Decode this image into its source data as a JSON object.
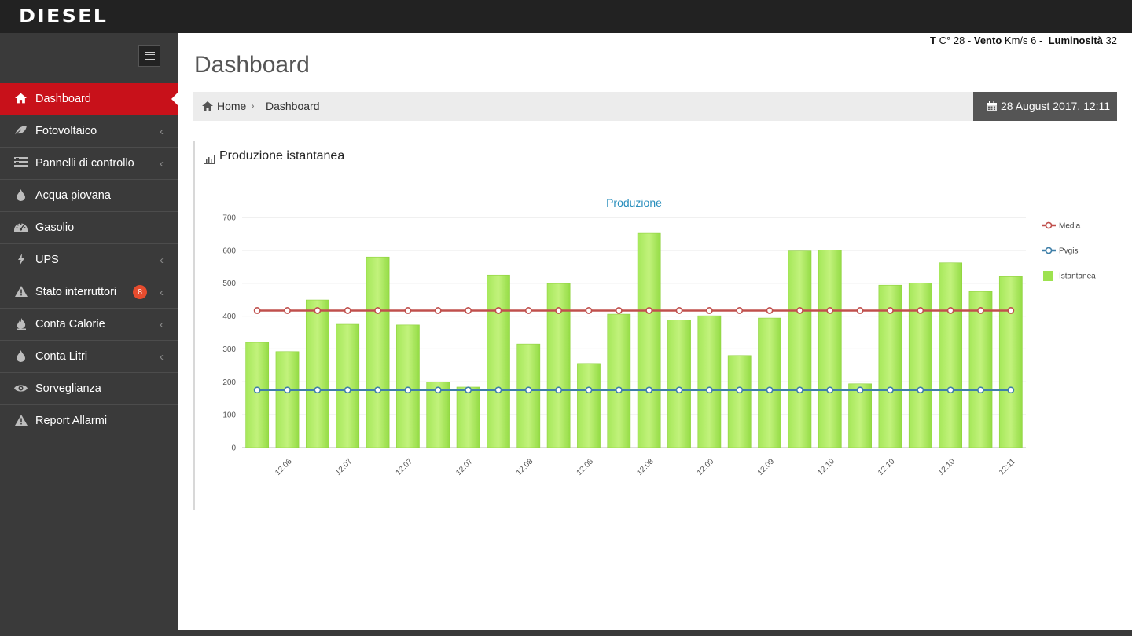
{
  "app": {
    "logo": "DIESEL"
  },
  "header": {
    "weather": {
      "temp_label": "T",
      "temp_unit": "C°",
      "temp_value": "28",
      "wind_label": "Vento",
      "wind_unit": "Km/s",
      "wind_value": "6",
      "lum_label": "Luminosità",
      "lum_value": "32"
    },
    "date": "28 August 2017, 12:11"
  },
  "sidebar": {
    "items": [
      {
        "label": "Dashboard",
        "icon": "home-icon",
        "active": true,
        "chevron": false
      },
      {
        "label": "Fotovoltaico",
        "icon": "leaf-icon",
        "chevron": true
      },
      {
        "label": "Pannelli di controllo",
        "icon": "panels-icon",
        "chevron": true
      },
      {
        "label": "Acqua piovana",
        "icon": "water-drop-icon",
        "chevron": false
      },
      {
        "label": "Gasolio",
        "icon": "gauge-icon",
        "chevron": false
      },
      {
        "label": "UPS",
        "icon": "bolt-icon",
        "chevron": true
      },
      {
        "label": "Stato interruttori",
        "icon": "warning-icon",
        "chevron": true,
        "badge": "8"
      },
      {
        "label": "Conta Calorie",
        "icon": "flame-icon",
        "chevron": true
      },
      {
        "label": "Conta Litri",
        "icon": "water-drop-icon",
        "chevron": true
      },
      {
        "label": "Sorveglianza",
        "icon": "eye-icon",
        "chevron": false
      },
      {
        "label": "Report Allarmi",
        "icon": "warning-icon",
        "chevron": false
      }
    ]
  },
  "page": {
    "title": "Dashboard"
  },
  "breadcrumb": {
    "home": "Home",
    "current": "Dashboard"
  },
  "panel": {
    "title": "Produzione istantanea"
  },
  "colors": {
    "accent": "#c8111a",
    "bar": "#9de24f",
    "media": "#c0504d",
    "pvgis": "#3f7fa8",
    "title": "#2a8fbd",
    "badge": "#e64c2e"
  },
  "chart_data": {
    "type": "bar",
    "title": "Produzione",
    "ylim": [
      0,
      700
    ],
    "yticks": [
      0,
      100,
      200,
      300,
      400,
      500,
      600,
      700
    ],
    "categories": [
      "",
      "12:06",
      "",
      "12:07",
      "",
      "12:07",
      "",
      "12:07",
      "",
      "12:08",
      "",
      "12:08",
      "",
      "12:08",
      "",
      "12:09",
      "",
      "12:09",
      "",
      "12:10",
      "",
      "12:10",
      "",
      "12:10",
      "",
      "12:11"
    ],
    "series": [
      {
        "name": "Istantanea",
        "type": "bar",
        "color": "#9de24f",
        "values": [
          320,
          292,
          449,
          375,
          580,
          373,
          199,
          184,
          525,
          315,
          499,
          256,
          406,
          652,
          388,
          401,
          280,
          394,
          598,
          601,
          194,
          494,
          501,
          562,
          475,
          520
        ]
      },
      {
        "name": "Media",
        "type": "line",
        "color": "#c0504d",
        "values": [
          417,
          417,
          417,
          417,
          417,
          417,
          417,
          417,
          417,
          417,
          417,
          417,
          417,
          417,
          417,
          417,
          417,
          417,
          417,
          417,
          417,
          417,
          417,
          417,
          417,
          417
        ]
      },
      {
        "name": "Pvgis",
        "type": "line",
        "color": "#3f7fa8",
        "values": [
          175,
          175,
          175,
          175,
          175,
          175,
          175,
          175,
          175,
          175,
          175,
          175,
          175,
          175,
          175,
          175,
          175,
          175,
          175,
          175,
          175,
          175,
          175,
          175,
          175,
          175
        ]
      }
    ],
    "legend": {
      "position": "right",
      "order": [
        "Media",
        "Pvgis",
        "Istantanea"
      ]
    },
    "grid": true
  }
}
